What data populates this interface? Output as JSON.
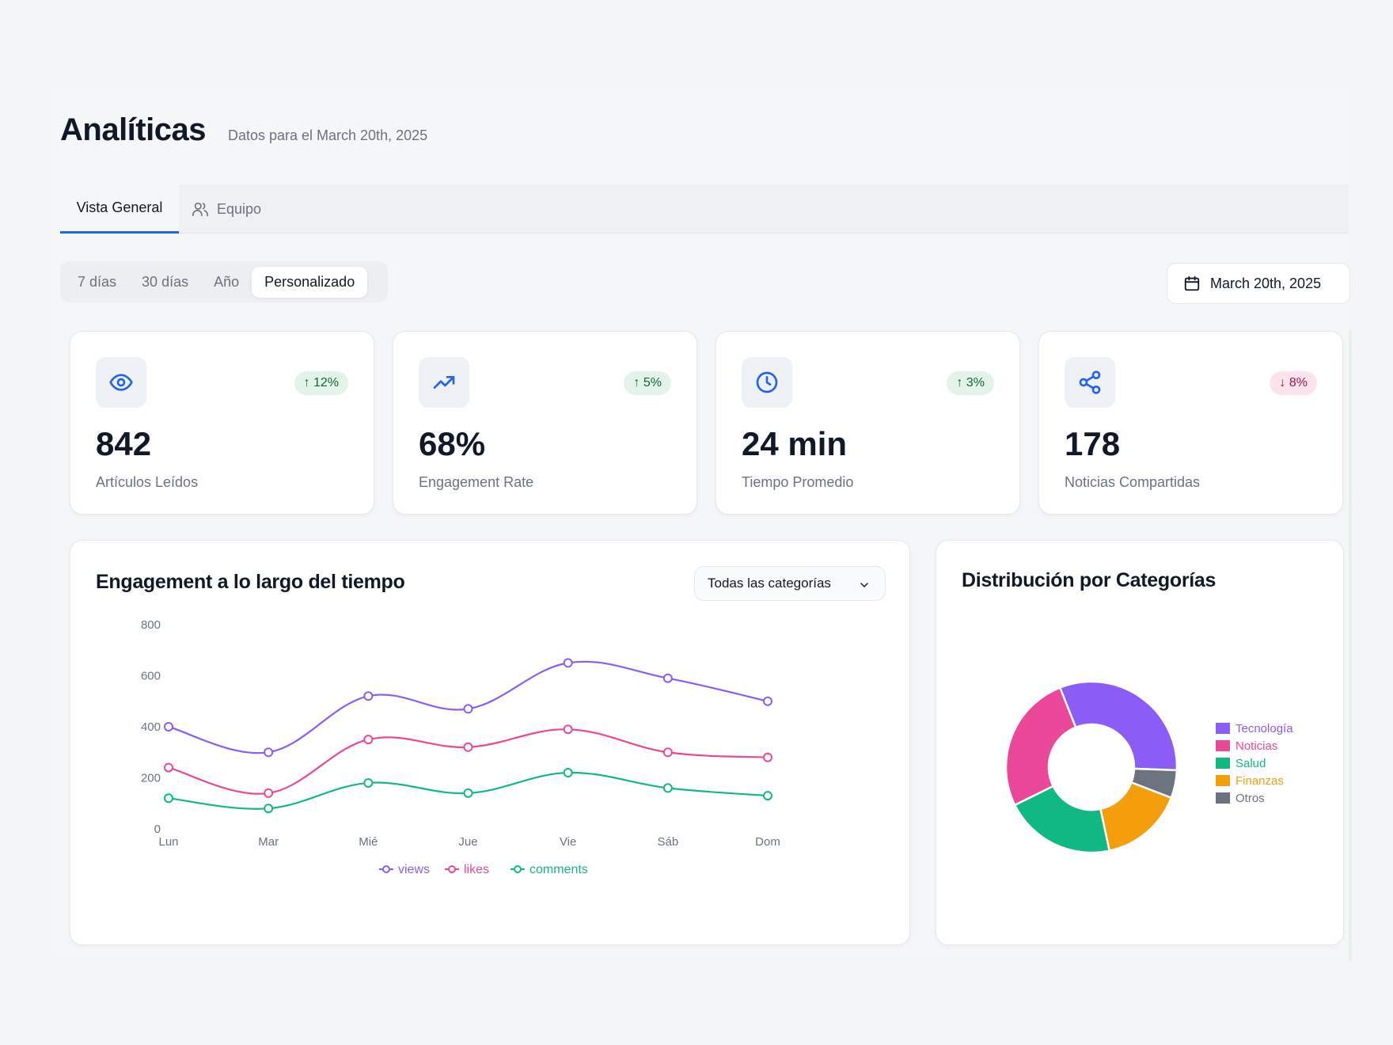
{
  "header": {
    "title": "Analíticas",
    "subtitle": "Datos para el March 20th, 2025"
  },
  "tabs": [
    {
      "label": "Vista General",
      "active": true
    },
    {
      "label": "Equipo",
      "active": false,
      "icon": "users-icon"
    }
  ],
  "ranges": [
    {
      "label": "7 días",
      "active": false
    },
    {
      "label": "30 días",
      "active": false
    },
    {
      "label": "Año",
      "active": false
    },
    {
      "label": "Personalizado",
      "active": true
    }
  ],
  "date_picker": {
    "label": "March 20th, 2025",
    "icon": "calendar-icon"
  },
  "stats": [
    {
      "icon": "eye-icon",
      "value": "842",
      "label": "Artículos Leídos",
      "change": "12%",
      "direction": "up"
    },
    {
      "icon": "trending-up-icon",
      "value": "68%",
      "label": "Engagement Rate",
      "change": "5%",
      "direction": "up"
    },
    {
      "icon": "clock-icon",
      "value": "24 min",
      "label": "Tiempo Promedio",
      "change": "3%",
      "direction": "up"
    },
    {
      "icon": "share-icon",
      "value": "178",
      "label": "Noticias Compartidas",
      "change": "8%",
      "direction": "down"
    }
  ],
  "engagement": {
    "title": "Engagement a lo largo del tiempo",
    "filter": "Todas las categorías"
  },
  "distribution": {
    "title": "Distribución por Categorías"
  },
  "colors": {
    "accent": "#2563eb",
    "views": "#8b5cf6",
    "likes": "#ec4899",
    "comments": "#10b981"
  },
  "chart_data": [
    {
      "type": "line",
      "title": "Engagement a lo largo del tiempo",
      "categories": [
        "Lun",
        "Mar",
        "Mié",
        "Jue",
        "Vie",
        "Sáb",
        "Dom"
      ],
      "series": [
        {
          "name": "views",
          "color": "#8b5cf6",
          "values": [
            400,
            300,
            520,
            470,
            650,
            590,
            500
          ]
        },
        {
          "name": "likes",
          "color": "#ec4899",
          "values": [
            240,
            140,
            350,
            320,
            390,
            300,
            280
          ]
        },
        {
          "name": "comments",
          "color": "#10b981",
          "values": [
            120,
            80,
            180,
            140,
            220,
            160,
            130
          ]
        }
      ],
      "yticks": [
        0,
        200,
        400,
        600,
        800
      ],
      "ylim": [
        0,
        800
      ],
      "legend": "bottom"
    },
    {
      "type": "pie",
      "title": "Distribución por Categorías",
      "labels": [
        "Tecnología",
        "Finanzas",
        "Salud",
        "Noticias",
        "Otros"
      ],
      "legend_order": [
        "Tecnología",
        "Noticias",
        "Salud",
        "Finanzas",
        "Otros"
      ],
      "values": [
        30,
        15,
        20,
        25,
        5
      ],
      "slice_order": [
        "Tecnología",
        "Otros",
        "Finanzas",
        "Salud",
        "Noticias"
      ],
      "slice_values": [
        30,
        5,
        15,
        20,
        25
      ],
      "colors": {
        "Tecnología": "#8b5cf6",
        "Noticias": "#ec4899",
        "Salud": "#10b981",
        "Finanzas": "#f59e0b",
        "Otros": "#6b7280"
      },
      "legend": "right"
    }
  ]
}
